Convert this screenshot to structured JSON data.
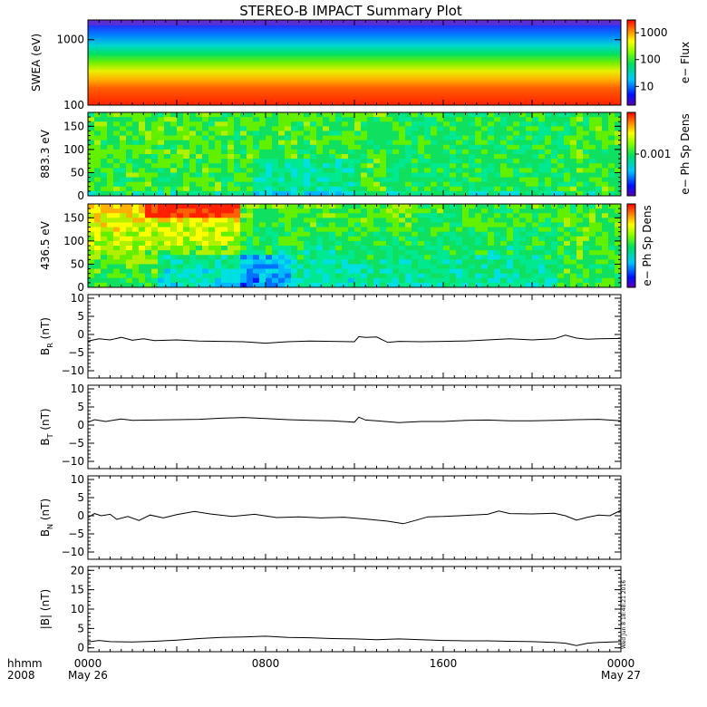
{
  "title": "STEREO-B IMPACT Summary Plot",
  "stamp": "Wed Jun  8 18:48:21 2016",
  "xaxis": {
    "row1_label": "hhmm",
    "row2_label": "2008",
    "range_hours": [
      0,
      24
    ],
    "ticks": [
      {
        "h": 0,
        "label": "0000",
        "sub": "May 26"
      },
      {
        "h": 8,
        "label": "0800",
        "sub": ""
      },
      {
        "h": 16,
        "label": "1600",
        "sub": ""
      },
      {
        "h": 24,
        "label": "0000",
        "sub": "May 27"
      }
    ]
  },
  "colorbars": [
    {
      "label": "e− Flux",
      "ticks": [
        {
          "v": 1000,
          "label": "1000"
        },
        {
          "v": 100,
          "label": "100"
        },
        {
          "v": 10,
          "label": "10"
        }
      ],
      "range": [
        2,
        3000
      ],
      "log": true
    },
    {
      "label": "e− Ph Sp Dens",
      "ticks": [
        {
          "v": 0.001,
          "label": "0.001"
        }
      ],
      "range": [
        0.0001,
        0.01
      ],
      "log": true
    },
    {
      "label": "e− Ph Sp Dens",
      "ticks": [],
      "range": [
        0.0001,
        0.01
      ],
      "log": true
    }
  ],
  "chart_data": [
    {
      "type": "heatmap",
      "ylabel": "SWEA (eV)",
      "ylog": true,
      "ylim": [
        100,
        2000
      ],
      "yticks": [
        {
          "v": 1000,
          "label": "1000"
        },
        {
          "v": 100,
          "label": "100"
        }
      ],
      "description_values": "e- flux decreases with energy: ~2000 at 100 eV, ~100 at 500 eV, ~5 at 2000 eV"
    },
    {
      "type": "heatmap",
      "ylabel": "883.3 eV",
      "ylim": [
        0,
        180
      ],
      "yticks": [
        {
          "v": 0,
          "label": "0"
        },
        {
          "v": 50,
          "label": "50"
        },
        {
          "v": 100,
          "label": "100"
        },
        {
          "v": 150,
          "label": "150"
        }
      ]
    },
    {
      "type": "heatmap",
      "ylabel": "436.5 eV",
      "ylim": [
        0,
        180
      ],
      "yticks": [
        {
          "v": 0,
          "label": "0"
        },
        {
          "v": 50,
          "label": "50"
        },
        {
          "v": 100,
          "label": "100"
        },
        {
          "v": 150,
          "label": "150"
        }
      ]
    },
    {
      "type": "line",
      "ylabel_main": "B",
      "ylabel_sub": "R",
      "ylabel_unit": " (nT)",
      "ylim": [
        -12,
        11
      ],
      "yticks": [
        {
          "v": -10,
          "label": "−10"
        },
        {
          "v": -5,
          "label": "−5"
        },
        {
          "v": 0,
          "label": "0"
        },
        {
          "v": 5,
          "label": "5"
        },
        {
          "v": 10,
          "label": "10"
        }
      ],
      "x": [
        0,
        0.5,
        1,
        1.5,
        2,
        2.5,
        3,
        4,
        5,
        6,
        7,
        8,
        9,
        10,
        11,
        12,
        12.2,
        12.5,
        13,
        13.5,
        14,
        15,
        16,
        17,
        18,
        19,
        20,
        21,
        21.5,
        22,
        22.5,
        23,
        24
      ],
      "y": [
        -1.8,
        -1.2,
        -1.5,
        -0.8,
        -1.6,
        -1.2,
        -1.7,
        -1.5,
        -1.8,
        -1.9,
        -2.0,
        -2.4,
        -2.0,
        -1.8,
        -1.9,
        -2.0,
        -0.6,
        -0.8,
        -0.7,
        -2.2,
        -1.9,
        -2.0,
        -1.9,
        -1.8,
        -1.5,
        -1.2,
        -1.5,
        -1.2,
        -0.2,
        -1.0,
        -1.3,
        -1.2,
        -1.1
      ]
    },
    {
      "type": "line",
      "ylabel_main": "B",
      "ylabel_sub": "T",
      "ylabel_unit": " (nT)",
      "ylim": [
        -12,
        11
      ],
      "yticks": [
        {
          "v": -10,
          "label": "−10"
        },
        {
          "v": -5,
          "label": "−5"
        },
        {
          "v": 0,
          "label": "0"
        },
        {
          "v": 5,
          "label": "5"
        },
        {
          "v": 10,
          "label": "10"
        }
      ],
      "x": [
        0,
        0.3,
        0.8,
        1.5,
        2,
        3,
        4,
        5,
        6,
        7,
        8,
        9,
        10,
        11,
        12,
        12.2,
        12.5,
        13,
        14,
        15,
        16,
        17,
        18,
        19,
        20,
        21,
        22,
        23,
        24
      ],
      "y": [
        0.8,
        1.5,
        1.0,
        1.7,
        1.3,
        1.4,
        1.5,
        1.6,
        1.9,
        2.1,
        1.8,
        1.5,
        1.3,
        1.2,
        0.8,
        2.2,
        1.4,
        1.2,
        0.7,
        1.0,
        1.0,
        1.3,
        1.4,
        1.2,
        1.2,
        1.3,
        1.5,
        1.6,
        1.2
      ]
    },
    {
      "type": "line",
      "ylabel_main": "B",
      "ylabel_sub": "N",
      "ylabel_unit": " (nT)",
      "ylim": [
        -12,
        11
      ],
      "yticks": [
        {
          "v": -10,
          "label": "−10"
        },
        {
          "v": -5,
          "label": "−5"
        },
        {
          "v": 0,
          "label": "0"
        },
        {
          "v": 5,
          "label": "5"
        },
        {
          "v": 10,
          "label": "10"
        }
      ],
      "x": [
        0,
        0.3,
        0.6,
        1,
        1.3,
        1.8,
        2.3,
        2.8,
        3.4,
        4,
        4.8,
        5.5,
        6.5,
        7.5,
        8.5,
        9.5,
        10.5,
        11.5,
        12.5,
        13.5,
        14.2,
        14.8,
        15.3,
        16,
        17,
        18,
        18.5,
        19,
        20,
        21,
        21.5,
        22,
        22.5,
        23,
        23.5,
        24
      ],
      "y": [
        -0.5,
        0.6,
        0.0,
        0.4,
        -1.0,
        -0.2,
        -1.3,
        0.2,
        -0.6,
        0.3,
        1.2,
        0.5,
        -0.2,
        0.4,
        -0.5,
        -0.3,
        -0.6,
        -0.4,
        -0.9,
        -1.5,
        -2.2,
        -1.2,
        -0.3,
        -0.2,
        0.1,
        0.4,
        1.3,
        0.6,
        0.5,
        0.7,
        0.0,
        -1.2,
        -0.4,
        0.2,
        0.0,
        1.5
      ]
    },
    {
      "type": "line",
      "ylabel": "|B| (nT)",
      "ylim": [
        -1,
        21
      ],
      "yticks": [
        {
          "v": 0,
          "label": "0"
        },
        {
          "v": 5,
          "label": "5"
        },
        {
          "v": 10,
          "label": "10"
        },
        {
          "v": 15,
          "label": "15"
        },
        {
          "v": 20,
          "label": "20"
        }
      ],
      "x": [
        0,
        0.5,
        1,
        2,
        3,
        4,
        5,
        6,
        7,
        8,
        9,
        10,
        11,
        12,
        13,
        14,
        15,
        16,
        17,
        18,
        19,
        20,
        21,
        21.5,
        22,
        22.5,
        23,
        24
      ],
      "y": [
        1.5,
        1.9,
        1.6,
        1.5,
        1.7,
        2.0,
        2.4,
        2.7,
        2.8,
        3.0,
        2.7,
        2.6,
        2.4,
        2.3,
        2.1,
        2.3,
        2.1,
        1.9,
        1.8,
        1.8,
        1.7,
        1.6,
        1.4,
        1.2,
        0.6,
        1.2,
        1.4,
        1.6
      ]
    }
  ]
}
